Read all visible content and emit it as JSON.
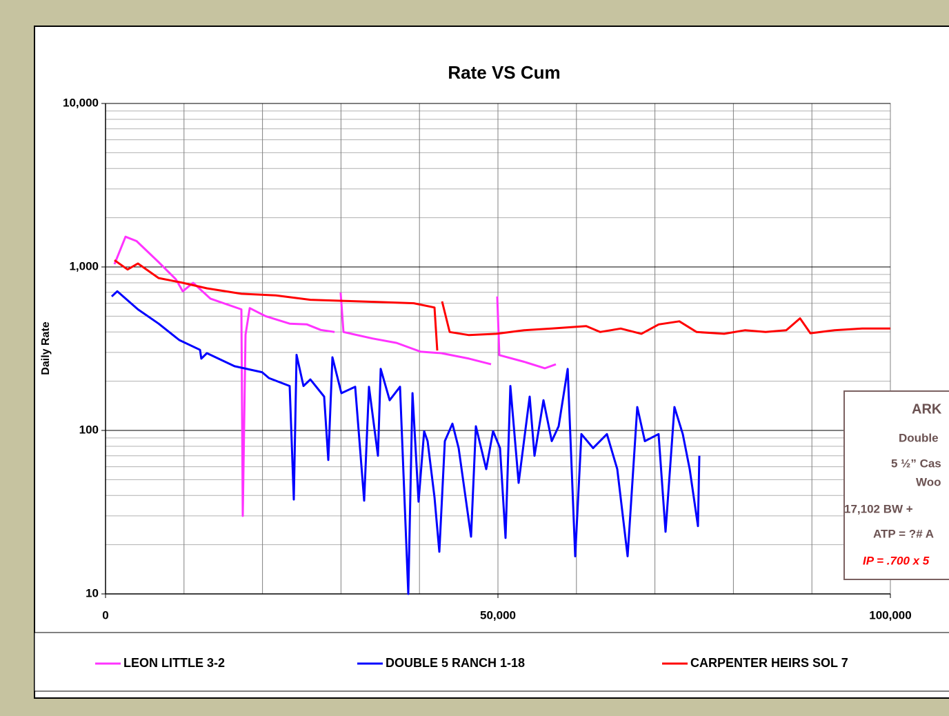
{
  "chart_data": {
    "type": "line",
    "title": "Rate VS Cum",
    "ylabel": "Daily Rate",
    "ylog": true,
    "xlim": [
      0,
      100000
    ],
    "xticks": [
      0,
      {
        "value": 50000,
        "label": "50,000"
      },
      {
        "value": 100000,
        "label": "100,000"
      }
    ],
    "xgrid": [
      0,
      10000,
      20000,
      30000,
      40000,
      50000,
      60000,
      70000,
      80000,
      90000,
      100000
    ],
    "ylim": [
      10,
      10000
    ],
    "yticks": [
      10,
      100,
      {
        "value": 1000,
        "label": "1,000"
      },
      {
        "value": 10000,
        "label": "10,000"
      }
    ],
    "yminor_grid": true,
    "legend": "bottom",
    "series": [
      {
        "name": "LEON LITTLE 3-2",
        "color": "#ff33ff",
        "x": [
          1140,
          2550,
          3950,
          6770,
          8960,
          9840,
          11160,
          13360,
          17310,
          17490,
          17840,
          18370,
          20390,
          23460,
          25660,
          27420,
          29180,
          null,
          29960,
          30320,
          34010,
          37080,
          40160,
          42790,
          46310,
          49120,
          null,
          49910,
          50180,
          53340,
          55980,
          57380
        ],
        "values": [
          1040,
          1530,
          1440,
          1070,
          840,
          710,
          800,
          640,
          550,
          30,
          385,
          560,
          500,
          450,
          445,
          412,
          400,
          null,
          697,
          400,
          365,
          343,
          303,
          297,
          275,
          254,
          null,
          660,
          289,
          263,
          240,
          254
        ]
      },
      {
        "name": "DOUBLE 5 RANCH 1-18",
        "color": "#0000ff",
        "x": [
          790,
          1490,
          4130,
          6770,
          9400,
          12040,
          12210,
          12920,
          16430,
          19950,
          20830,
          23460,
          23990,
          24340,
          25220,
          26100,
          27860,
          28380,
          28910,
          30050,
          31810,
          32950,
          33570,
          34710,
          35060,
          36200,
          37520,
          38580,
          39110,
          39890,
          40600,
          41040,
          41920,
          42530,
          43230,
          44200,
          44990,
          46570,
          47190,
          48510,
          49380,
          50260,
          50970,
          51580,
          52640,
          54040,
          54660,
          55800,
          56850,
          57730,
          58880,
          59840,
          60630,
          62130,
          63880,
          65200,
          66520,
          67750,
          68720,
          70470,
          71350,
          72490,
          73550,
          74430,
          75480,
          75660
        ],
        "values": [
          660,
          710,
          550,
          450,
          357,
          311,
          275,
          297,
          247,
          227,
          209,
          187,
          37.8,
          290,
          187,
          205,
          161,
          66,
          280,
          169,
          185,
          37.2,
          185,
          70,
          238,
          153,
          185,
          10,
          169,
          36.7,
          98.8,
          86,
          39,
          18.1,
          86,
          110,
          78,
          22.4,
          106,
          58,
          99,
          78,
          22,
          187,
          47.8,
          161,
          70,
          153,
          86,
          106,
          238,
          17,
          95,
          78,
          95,
          58,
          17,
          139,
          86,
          95,
          24,
          139,
          95,
          58,
          26,
          70
        ]
      },
      {
        "name": "CARPENTER HEIRS SOL 7",
        "color": "#ff0000",
        "x": [
          1140,
          2810,
          4130,
          6770,
          9840,
          12920,
          17310,
          21700,
          26100,
          30490,
          34890,
          39280,
          41920,
          42270,
          null,
          42880,
          43850,
          46310,
          49820,
          53340,
          56850,
          61250,
          63010,
          65640,
          68280,
          70480,
          73110,
          75310,
          78820,
          81460,
          84100,
          86730,
          88490,
          89810,
          92880,
          96400,
          100000
        ],
        "values": [
          1100,
          965,
          1050,
          855,
          800,
          740,
          685,
          670,
          630,
          620,
          610,
          600,
          565,
          308,
          null,
          615,
          400,
          383,
          390,
          410,
          420,
          435,
          400,
          420,
          390,
          445,
          465,
          400,
          390,
          410,
          400,
          410,
          485,
          393,
          410,
          420,
          420
        ]
      }
    ],
    "annotation_box": [
      "ARK",
      "Double",
      "5 ½” Cas",
      "Woo",
      "17,102 BW +",
      "ATP = ?# A",
      "IP = .700 x 5"
    ]
  }
}
